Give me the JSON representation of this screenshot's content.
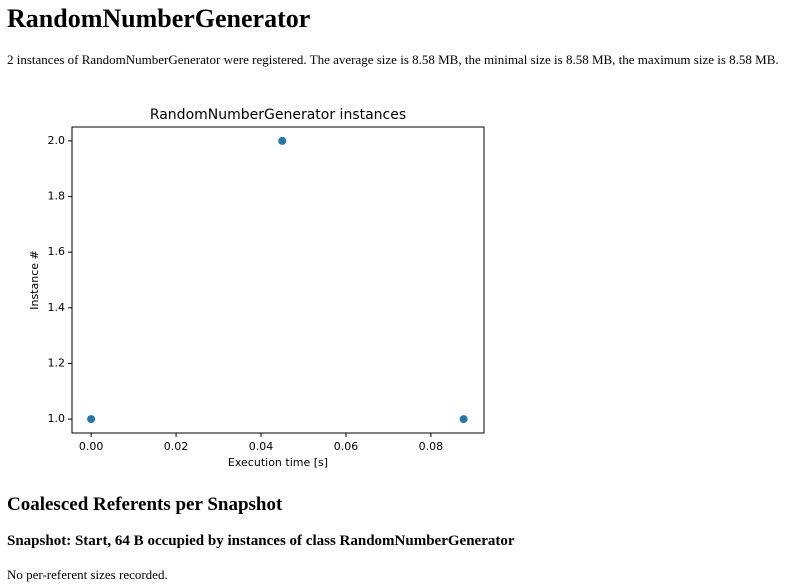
{
  "header": {
    "title": "RandomNumberGenerator"
  },
  "summary": "2 instances of RandomNumberGenerator were registered. The average size is 8.58 MB, the minimal size is 8.58 MB, the maximum size is 8.58 MB.",
  "chart_data": {
    "type": "scatter",
    "title": "RandomNumberGenerator instances",
    "xlabel": "Execution time [s]",
    "ylabel": "Instance #",
    "x": [
      0,
      0.045,
      0.0877
    ],
    "values": [
      1,
      2,
      1
    ],
    "color": "#1f77b4",
    "xlim": [
      -0.0045,
      0.0925
    ],
    "ylim": [
      0.95,
      2.05
    ],
    "xticks": [
      {
        "value": 0,
        "label": "0.00"
      },
      {
        "value": 0.02,
        "label": "0.02"
      },
      {
        "value": 0.04,
        "label": "0.04"
      },
      {
        "value": 0.06,
        "label": "0.06"
      },
      {
        "value": 0.08,
        "label": "0.08"
      }
    ],
    "yticks": [
      {
        "value": 1,
        "label": "1.0"
      },
      {
        "value": 1.2,
        "label": "1.2"
      },
      {
        "value": 1.4,
        "label": "1.4"
      },
      {
        "value": 1.6,
        "label": "1.6"
      },
      {
        "value": 1.8,
        "label": "1.8"
      },
      {
        "value": 2,
        "label": "2.0"
      }
    ]
  },
  "section": {
    "title": "Coalesced Referents per Snapshot",
    "snapshot": "Snapshot: Start, 64 B occupied by instances of class RandomNumberGenerator",
    "note": "No per-referent sizes recorded."
  }
}
